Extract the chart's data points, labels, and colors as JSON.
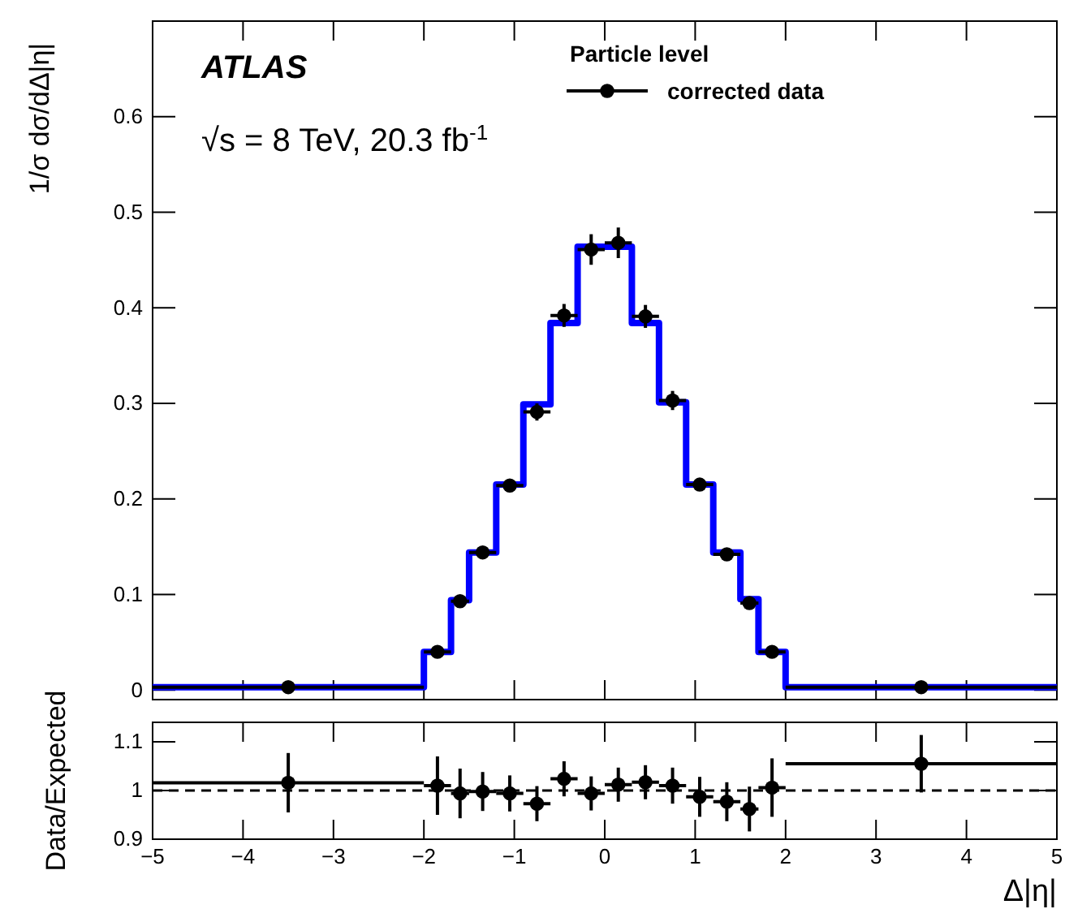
{
  "chart_data": [
    {
      "type": "scatter",
      "ylabel": "1/σ dσ/dΔ|η|",
      "legend_title": "Particle level",
      "annotations": [
        "ATLAS",
        "√s = 8 TeV, 20.3 fb$^{-1}$"
      ],
      "xlim": [
        -5,
        5
      ],
      "xticks": [
        -5,
        -4,
        -3,
        -2,
        -1,
        0,
        1,
        2,
        3,
        4,
        5
      ],
      "ylim": [
        -0.01,
        0.7
      ],
      "yticks": [
        0,
        0.1,
        0.2,
        0.3,
        0.4,
        0.5,
        0.6
      ],
      "tick_labels": "y",
      "grid": false,
      "legend": "top right",
      "marker": "circle",
      "series": [
        {
          "type": "step",
          "marker": "none",
          "color": "#0000ff",
          "x": [
            -5,
            -2,
            -1.7,
            -1.5,
            -1.2,
            -0.9,
            -0.6,
            -0.3,
            0,
            0.3,
            0.6,
            0.9,
            1.2,
            1.5,
            1.7,
            2,
            5
          ],
          "values": [
            0.003,
            0.04,
            0.094,
            0.144,
            0.215,
            0.299,
            0.384,
            0.464,
            0.464,
            0.384,
            0.301,
            0.215,
            0.144,
            0.095,
            0.04,
            0.003,
            0.003
          ]
        },
        {
          "name": "corrected data",
          "color": "#000000",
          "x": [
            -3.5,
            -1.85,
            -1.6,
            -1.35,
            -1.05,
            -0.75,
            -0.45,
            -0.15,
            0.15,
            0.45,
            0.75,
            1.05,
            1.35,
            1.6,
            1.85,
            3.5
          ],
          "values": [
            0.003,
            0.04,
            0.093,
            0.144,
            0.214,
            0.291,
            0.392,
            0.461,
            0.468,
            0.391,
            0.303,
            0.215,
            0.142,
            0.091,
            0.04,
            0.003
          ],
          "errors": [
            0.001,
            0.003,
            0.004,
            0.005,
            0.005,
            0.009,
            0.012,
            0.016,
            0.016,
            0.012,
            0.01,
            0.005,
            0.005,
            0.004,
            0.003,
            0.001
          ],
          "xerrors": [
            1.5,
            0.15,
            0.1,
            0.15,
            0.15,
            0.15,
            0.15,
            0.15,
            0.15,
            0.15,
            0.15,
            0.15,
            0.15,
            0.1,
            0.15,
            1.5
          ]
        }
      ]
    },
    {
      "type": "scatter",
      "xlabel": "Δ|η|",
      "ylabel": "Data/Expected",
      "xlim": [
        -5,
        5
      ],
      "xticks": [
        -5,
        -4,
        -3,
        -2,
        -1,
        0,
        1,
        2,
        3,
        4,
        5
      ],
      "ylim": [
        0.9,
        1.14
      ],
      "yticks": [
        0.9,
        1,
        1.1
      ],
      "grid": false,
      "marker": "circle",
      "ref_lines": [
        {
          "axis": "y",
          "value": 1,
          "color": "#000000",
          "line_style": "dashed"
        }
      ],
      "series": [
        {
          "color": "#000000",
          "x": [
            -3.5,
            -1.85,
            -1.6,
            -1.35,
            -1.05,
            -0.75,
            -0.45,
            -0.15,
            0.15,
            0.45,
            0.75,
            1.05,
            1.35,
            1.6,
            1.85,
            3.5
          ],
          "values": [
            1.016,
            1.01,
            0.994,
            0.998,
            0.994,
            0.973,
            1.024,
            0.994,
            1.012,
            1.017,
            1.01,
            0.987,
            0.977,
            0.962,
            1.006,
            1.055
          ],
          "errors": [
            0.061,
            0.06,
            0.051,
            0.04,
            0.037,
            0.036,
            0.036,
            0.035,
            0.035,
            0.035,
            0.037,
            0.041,
            0.04,
            0.046,
            0.06,
            0.059
          ],
          "xerrors": [
            1.5,
            0.15,
            0.1,
            0.15,
            0.15,
            0.15,
            0.15,
            0.15,
            0.15,
            0.15,
            0.15,
            0.15,
            0.15,
            0.1,
            0.15,
            1.5
          ]
        }
      ]
    }
  ]
}
